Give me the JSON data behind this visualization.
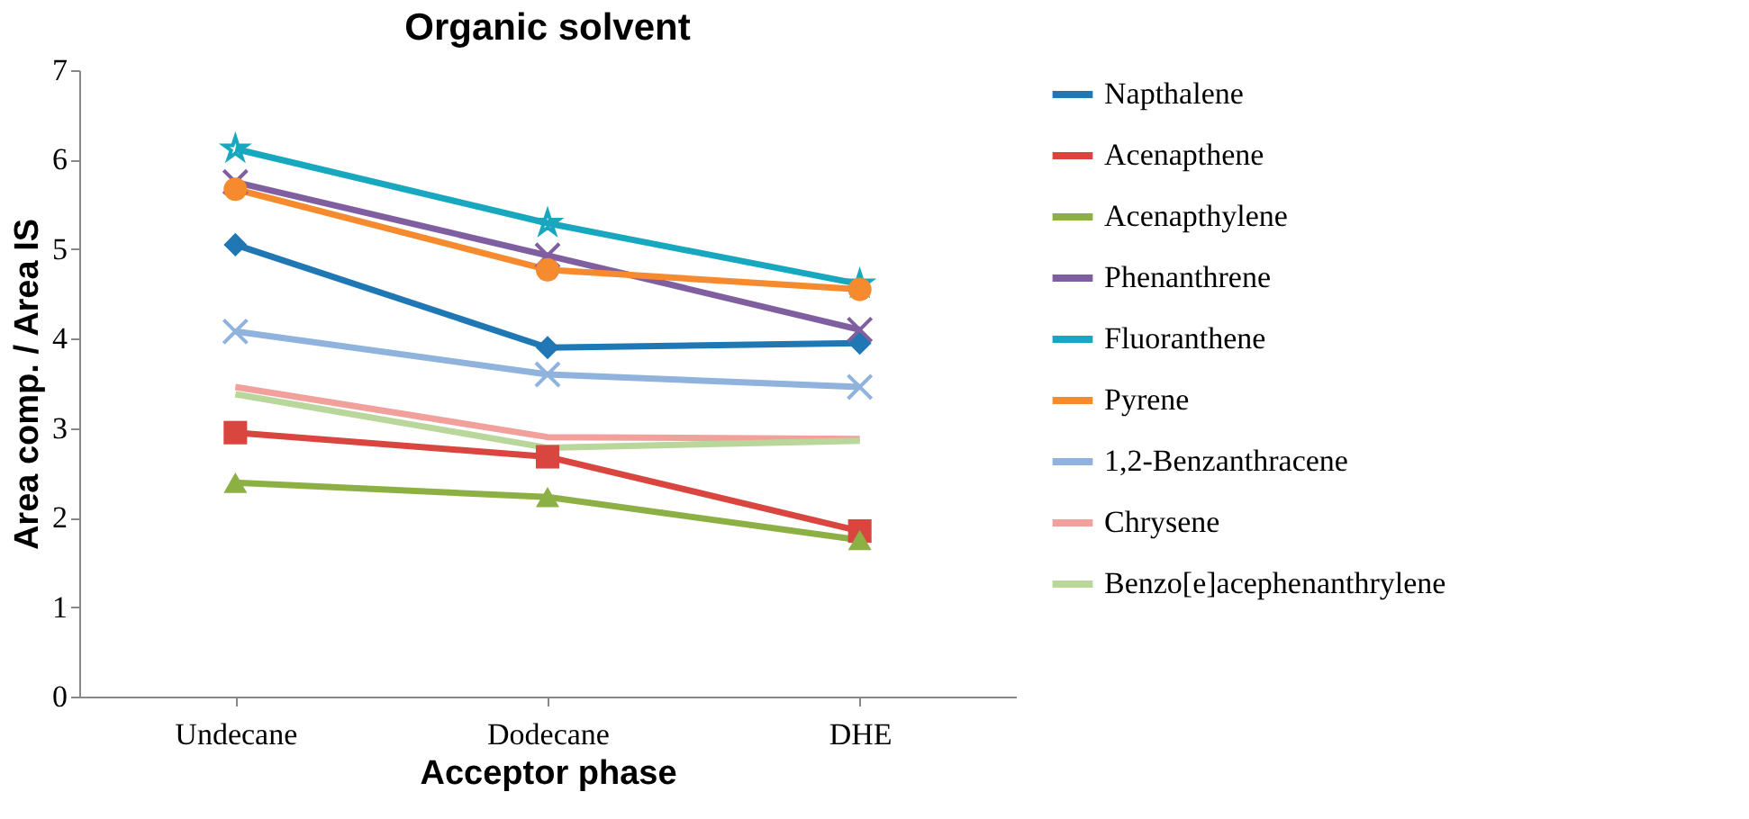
{
  "chart_data": {
    "type": "line",
    "title": "Organic solvent",
    "xlabel": "Acceptor phase",
    "ylabel": "Area comp. / Area IS",
    "categories": [
      "Undecane",
      "Dodecane",
      "DHE"
    ],
    "ylim": [
      0,
      7
    ],
    "yticks": [
      0,
      1,
      2,
      3,
      4,
      5,
      6,
      7
    ],
    "grid": false,
    "legend": "right",
    "series": [
      {
        "name": "Napthalene",
        "color": "#1f77b4",
        "marker": "diamond",
        "values": [
          5.05,
          3.9,
          3.95
        ]
      },
      {
        "name": "Acenapthene",
        "color": "#d9453f",
        "marker": "square",
        "values": [
          2.95,
          2.68,
          1.85
        ]
      },
      {
        "name": "Acenapthylene",
        "color": "#8db045",
        "marker": "triangle",
        "values": [
          2.39,
          2.23,
          1.75
        ]
      },
      {
        "name": "Phenanthrene",
        "color": "#7f5fa0",
        "marker": "cross",
        "values": [
          5.75,
          4.93,
          4.1
        ]
      },
      {
        "name": "Fluoranthene",
        "color": "#17a8c0",
        "marker": "star",
        "values": [
          6.12,
          5.29,
          4.61
        ]
      },
      {
        "name": "Pyrene",
        "color": "#f58a2e",
        "marker": "circle",
        "values": [
          5.67,
          4.77,
          4.55
        ]
      },
      {
        "name": "1,2-Benzanthracene",
        "color": "#8fb3dc",
        "marker": "cross",
        "values": [
          4.08,
          3.6,
          3.46
        ]
      },
      {
        "name": "Chrysene",
        "color": "#f2a09c",
        "marker": "none",
        "values": [
          3.46,
          2.9,
          2.88
        ]
      },
      {
        "name": "Benzo[e]acephenanthrylene",
        "color": "#b9d69b",
        "marker": "none",
        "values": [
          3.38,
          2.78,
          2.86
        ]
      }
    ]
  }
}
